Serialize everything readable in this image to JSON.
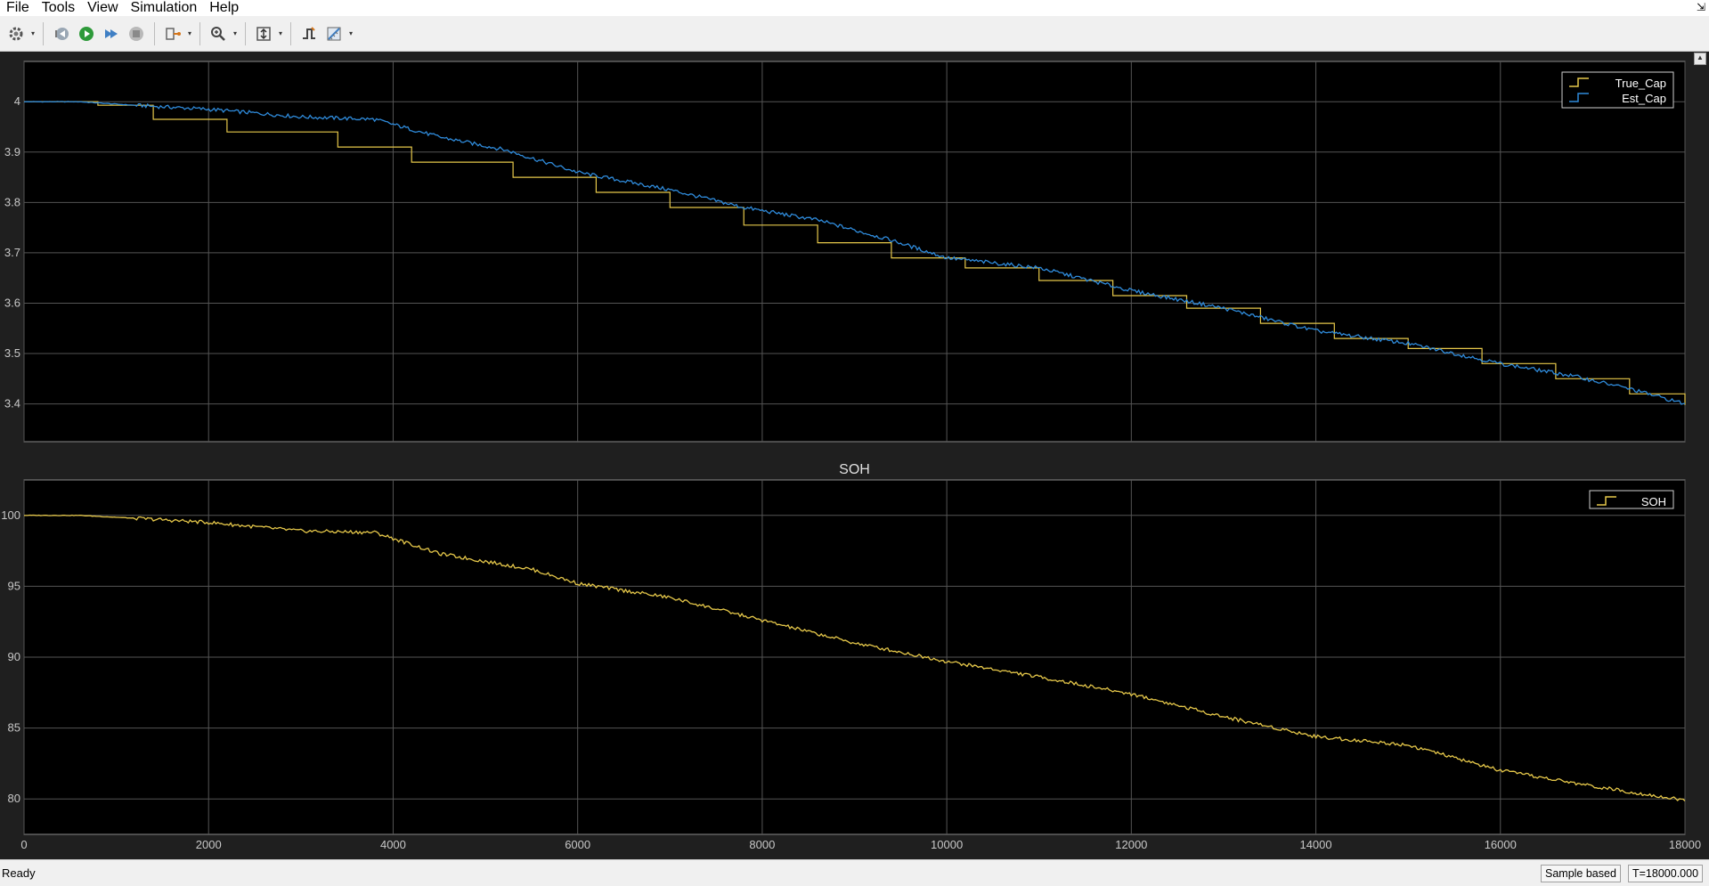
{
  "menu": [
    "File",
    "Tools",
    "View",
    "Simulation",
    "Help"
  ],
  "toolbar": {
    "buttons": [
      "settings-icon",
      "step-back-icon",
      "run-icon",
      "step-forward-icon",
      "stop-icon",
      "signal-config-icon",
      "zoom-icon",
      "scale-axes-icon",
      "triggers-icon",
      "measurements-icon"
    ]
  },
  "status": {
    "text": "Ready",
    "mode": "Sample based",
    "time": "T=18000.000"
  },
  "colors": {
    "background": "#1f1f1f",
    "plot_bg": "#000000",
    "grid": "#555555",
    "tick_text": "#c8c8c8",
    "yellow": "#e6c84a",
    "blue": "#2f8bdb"
  },
  "chart_data": [
    {
      "type": "line",
      "title": "",
      "xlim": [
        0,
        18000
      ],
      "ylim": [
        3.325,
        4.08
      ],
      "yticks": [
        3.4,
        3.5,
        3.6,
        3.7,
        3.8,
        3.9,
        4
      ],
      "ytick_labels": [
        "3.4",
        "3.5",
        "3.6",
        "3.7",
        "3.8",
        "3.9",
        "4"
      ],
      "xticks": [
        0,
        2000,
        4000,
        6000,
        8000,
        10000,
        12000,
        14000,
        16000,
        18000
      ],
      "grid": true,
      "legend_position": "top-right",
      "series": [
        {
          "name": "True_Cap",
          "color": "#e6c84a",
          "style": "step",
          "x": [
            0,
            800,
            1400,
            2200,
            3400,
            4200,
            5300,
            6200,
            7000,
            7800,
            8600,
            9400,
            10200,
            11000,
            11800,
            12600,
            13400,
            14200,
            15000,
            15800,
            16600,
            17400,
            18000
          ],
          "y": [
            4.0,
            3.993,
            3.965,
            3.94,
            3.91,
            3.88,
            3.85,
            3.82,
            3.79,
            3.755,
            3.72,
            3.69,
            3.67,
            3.645,
            3.615,
            3.59,
            3.56,
            3.53,
            3.51,
            3.48,
            3.45,
            3.42,
            3.398
          ]
        },
        {
          "name": "Est_Cap",
          "color": "#2f8bdb",
          "style": "line",
          "x": [
            0,
            600,
            1200,
            2000,
            3000,
            3800,
            4500,
            5200,
            6000,
            7000,
            7800,
            8600,
            9400,
            10000,
            11000,
            12000,
            13000,
            14000,
            15000,
            16000,
            16800,
            17400,
            18000
          ],
          "y": [
            4.0,
            4.0,
            3.993,
            3.985,
            3.97,
            3.965,
            3.93,
            3.905,
            3.86,
            3.825,
            3.79,
            3.765,
            3.725,
            3.69,
            3.67,
            3.625,
            3.59,
            3.545,
            3.52,
            3.48,
            3.455,
            3.43,
            3.4
          ]
        }
      ]
    },
    {
      "type": "line",
      "title": "SOH",
      "xlim": [
        0,
        18000
      ],
      "ylim": [
        77.5,
        102.5
      ],
      "yticks": [
        80,
        85,
        90,
        95,
        100
      ],
      "ytick_labels": [
        "80",
        "85",
        "90",
        "95",
        "100"
      ],
      "xticks": [
        0,
        2000,
        4000,
        6000,
        8000,
        10000,
        12000,
        14000,
        16000,
        18000
      ],
      "xtick_labels": [
        "0",
        "2000",
        "4000",
        "6000",
        "8000",
        "10000",
        "12000",
        "14000",
        "16000",
        "18000"
      ],
      "grid": true,
      "legend_position": "top-right",
      "series": [
        {
          "name": "SOH",
          "color": "#e6c84a",
          "style": "line",
          "x": [
            0,
            600,
            1200,
            2000,
            3000,
            3800,
            4500,
            5500,
            6000,
            7000,
            8000,
            9000,
            10000,
            11000,
            12000,
            13000,
            14000,
            15000,
            16000,
            17000,
            18000
          ],
          "y": [
            100.0,
            100.0,
            99.8,
            99.5,
            98.9,
            98.8,
            97.3,
            96.2,
            95.2,
            94.2,
            92.6,
            91.0,
            89.7,
            88.6,
            87.4,
            85.8,
            84.4,
            83.8,
            82.0,
            80.9,
            79.9
          ]
        }
      ]
    }
  ]
}
